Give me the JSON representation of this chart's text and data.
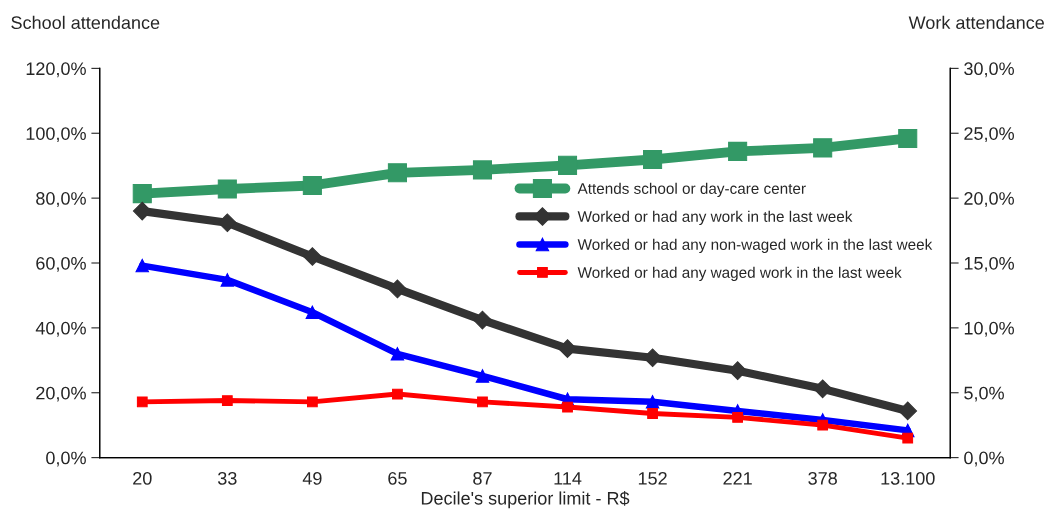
{
  "chart_data": {
    "type": "line",
    "xlabel": "Decile's superior limit - R$",
    "ylabel": "School attendance",
    "y2label": "Work attendance",
    "categories": [
      "20",
      "33",
      "49",
      "65",
      "87",
      "114",
      "152",
      "221",
      "378",
      "13.100"
    ],
    "series": [
      {
        "name": "Attends school or day-care center",
        "color": "#339966",
        "marker": "square",
        "values": [
          81.4,
          82.8,
          83.9,
          87.8,
          88.7,
          90.1,
          91.9,
          94.4,
          95.5,
          98.4
        ]
      },
      {
        "name": "Worked or had any work in the last week",
        "color": "#333333",
        "marker": "diamond",
        "axis": "y2",
        "values": [
          19.0,
          18.1,
          15.5,
          13.0,
          10.6,
          8.4,
          7.7,
          6.7,
          5.3,
          3.6
        ]
      },
      {
        "name": "Worked or had any non-waged work in the last week",
        "color": "#0000ff",
        "marker": "triangle",
        "axis": "y2",
        "values": [
          14.8,
          13.7,
          11.2,
          8.0,
          6.3,
          4.5,
          4.3,
          3.6,
          2.9,
          2.1
        ]
      },
      {
        "name": "Worked or had any waged work in the last week",
        "color": "#ff0000",
        "marker": "square",
        "axis": "y2",
        "values": [
          4.3,
          4.4,
          4.3,
          4.9,
          4.3,
          3.9,
          3.4,
          3.1,
          2.5,
          1.5
        ]
      }
    ],
    "ylim": [
      0,
      120
    ],
    "yticks": [
      {
        "value": 0,
        "label": "0,0%"
      },
      {
        "value": 20,
        "label": "20,0%"
      },
      {
        "value": 40,
        "label": "40,0%"
      },
      {
        "value": 60,
        "label": "60,0%"
      },
      {
        "value": 80,
        "label": "80,0%"
      },
      {
        "value": 100,
        "label": "100,0%"
      },
      {
        "value": 120,
        "label": "120,0%"
      }
    ],
    "y2lim": [
      0,
      30
    ],
    "y2ticks": [
      {
        "value": 0,
        "label": "0,0%"
      },
      {
        "value": 5,
        "label": "5,0%"
      },
      {
        "value": 10,
        "label": "10,0%"
      },
      {
        "value": 15,
        "label": "15,0%"
      },
      {
        "value": 20,
        "label": "20,0%"
      },
      {
        "value": 25,
        "label": "25,0%"
      },
      {
        "value": 30,
        "label": "30,0%"
      }
    ],
    "grid": false,
    "legend": "right",
    "line_style": "solid"
  }
}
